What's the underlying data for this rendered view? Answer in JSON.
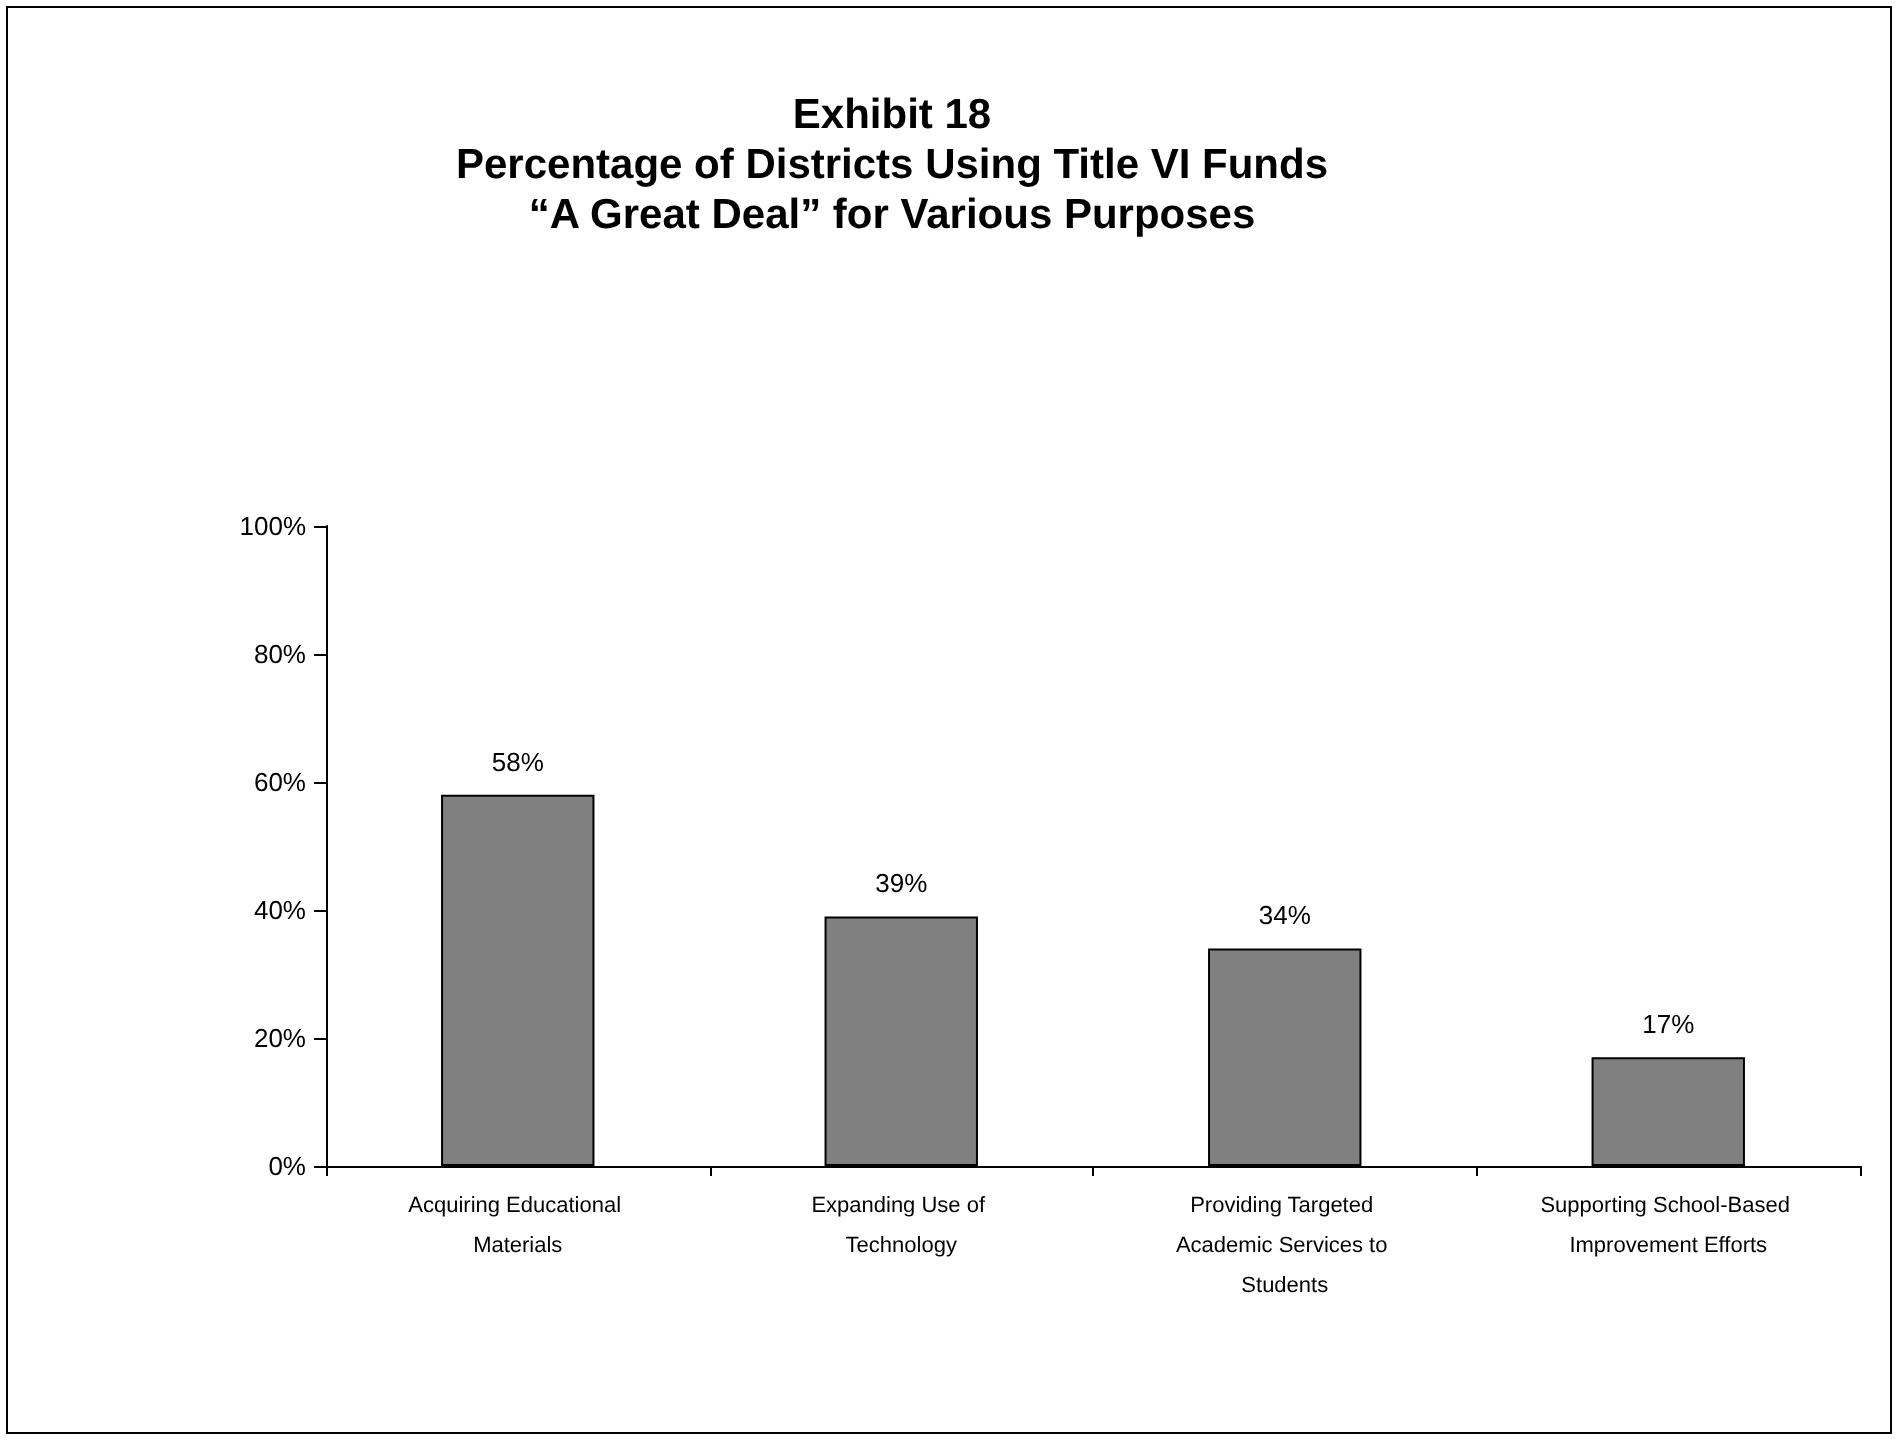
{
  "chart_data": {
    "type": "bar",
    "title": "Exhibit 18\nPercentage of Districts Using Title VI Funds\n“A Great Deal” for Various Purposes",
    "categories": [
      "Acquiring Educational Materials",
      "Expanding Use of Technology",
      "Providing Targeted Academic Services to Students",
      "Supporting School-Based Improvement Efforts"
    ],
    "values": [
      58,
      39,
      34,
      17
    ],
    "color": "#808080",
    "value_labels": [
      "58%",
      "39%",
      "34%",
      "17%"
    ],
    "ylim": [
      0,
      100
    ],
    "yticks": [
      {
        "value": 0,
        "label": "0%"
      },
      {
        "value": 20,
        "label": "20%"
      },
      {
        "value": 40,
        "label": "40%"
      },
      {
        "value": 60,
        "label": "60%"
      },
      {
        "value": 80,
        "label": "80%"
      },
      {
        "value": 100,
        "label": "100%"
      }
    ],
    "grid": false
  }
}
